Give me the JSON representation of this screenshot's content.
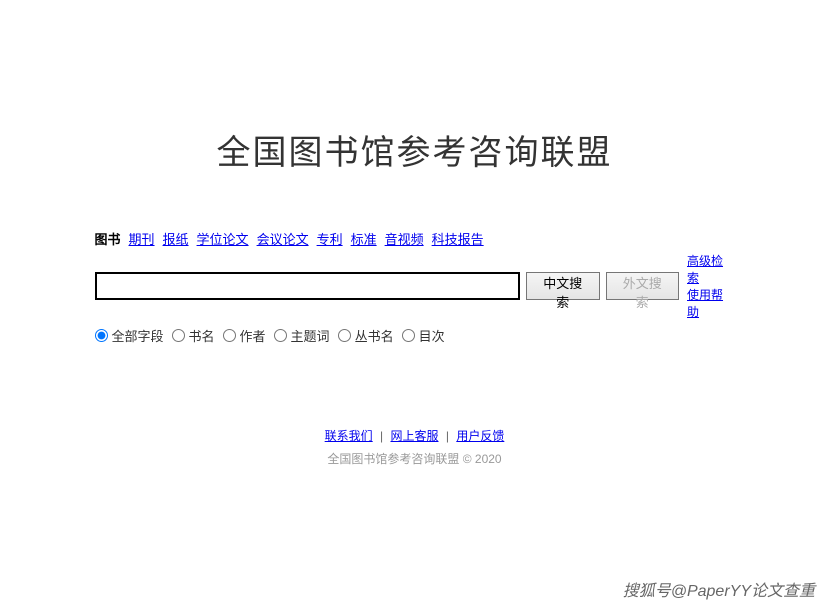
{
  "title": "全国图书馆参考咨询联盟",
  "tabs": [
    {
      "label": "图书",
      "active": true
    },
    {
      "label": "期刊",
      "active": false
    },
    {
      "label": "报纸",
      "active": false
    },
    {
      "label": "学位论文",
      "active": false
    },
    {
      "label": "会议论文",
      "active": false
    },
    {
      "label": "专利",
      "active": false
    },
    {
      "label": "标准",
      "active": false
    },
    {
      "label": "音视频",
      "active": false
    },
    {
      "label": "科技报告",
      "active": false
    }
  ],
  "search": {
    "value": "",
    "placeholder": "",
    "btn_chinese": "中文搜索",
    "btn_foreign": "外文搜索"
  },
  "side_links": {
    "advanced": "高级检索",
    "help": "使用帮助"
  },
  "radios": [
    {
      "label": "全部字段",
      "checked": true
    },
    {
      "label": "书名",
      "checked": false
    },
    {
      "label": "作者",
      "checked": false
    },
    {
      "label": "主题词",
      "checked": false
    },
    {
      "label": "丛书名",
      "checked": false
    },
    {
      "label": "目次",
      "checked": false
    }
  ],
  "footer": {
    "links": [
      "联系我们",
      "网上客服",
      "用户反馈"
    ],
    "separator": "|",
    "copyright": "全国图书馆参考咨询联盟 © 2020"
  },
  "watermark": "搜狐号@PaperYY论文查重"
}
